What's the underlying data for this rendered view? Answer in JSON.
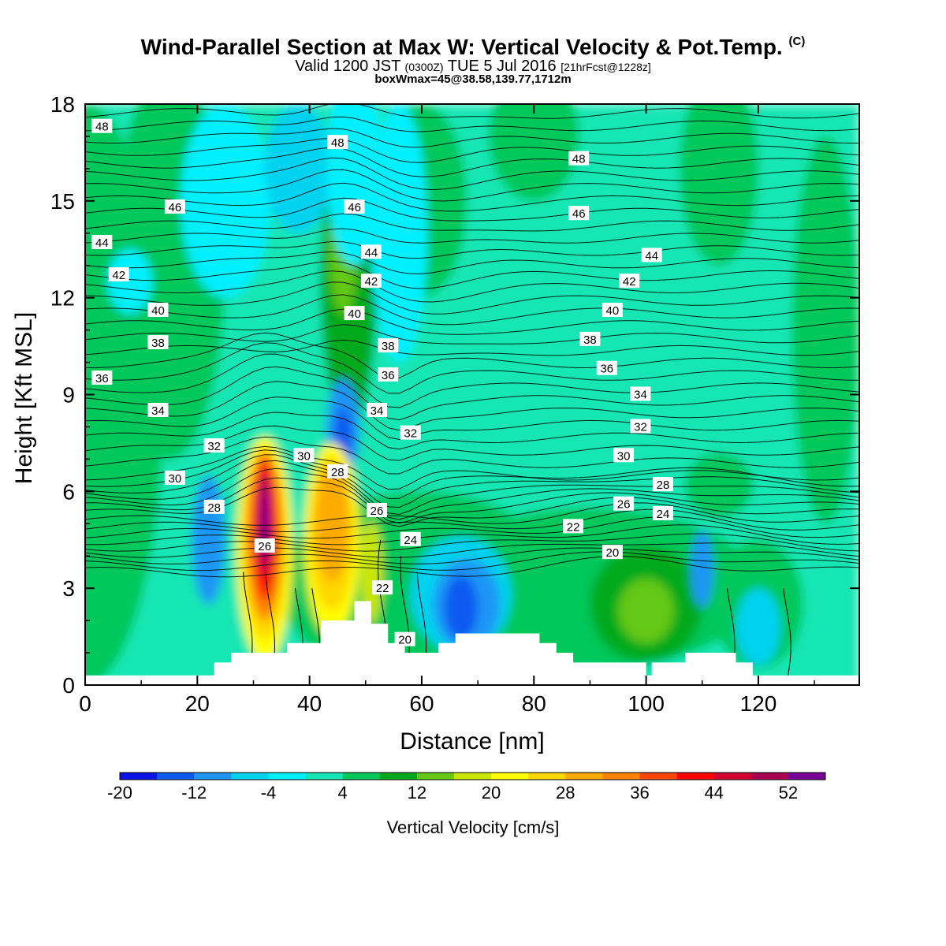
{
  "header": {
    "title_main": "Wind-Parallel Section at Max W: Vertical Velocity & Pot.Temp.",
    "title_mark": "(C)",
    "valid_prefix": "Valid 1200 JST",
    "valid_utc": "(0300Z)",
    "valid_date": "TUE 5 Jul 2016",
    "forecast": "[21hrFcst@1228z]",
    "box_info": "boxWmax=45@38.58,139.77,1712m"
  },
  "chart_data": {
    "type": "heatmap",
    "xlabel": "Distance [nm]",
    "ylabel": "Height [Kft MSL]",
    "xlim": [
      0,
      138
    ],
    "ylim": [
      0,
      18
    ],
    "x_ticks": [
      0,
      20,
      40,
      60,
      80,
      100,
      120
    ],
    "y_ticks": [
      0,
      3,
      6,
      9,
      12,
      15,
      18
    ],
    "colorbar": {
      "label": "Vertical Velocity [cm/s]",
      "tick_labels": [
        "-20",
        "-12",
        "-4",
        "4",
        "12",
        "20",
        "28",
        "36",
        "44",
        "52"
      ],
      "levels": [
        -20,
        -16,
        -12,
        -8,
        -4,
        0,
        4,
        8,
        12,
        16,
        20,
        24,
        28,
        32,
        36,
        40,
        44,
        48,
        52,
        56
      ],
      "colors": [
        "#0a14e6",
        "#0a5af0",
        "#1e96f5",
        "#00d2f0",
        "#00f0ff",
        "#14e6b4",
        "#00c85a",
        "#00aa1e",
        "#64c814",
        "#c8e600",
        "#ffff00",
        "#ffd700",
        "#ffaa00",
        "#ff8200",
        "#ff4600",
        "#ff0000",
        "#d20032",
        "#aa0050",
        "#780096"
      ]
    },
    "terrain_profile": {
      "distance_nm": [
        0,
        20,
        23,
        26,
        36,
        39,
        42,
        48,
        51,
        54,
        57,
        60,
        63,
        66,
        78,
        81,
        84,
        87,
        100,
        101,
        107,
        113,
        116,
        119,
        138
      ],
      "height_kft": [
        0.3,
        0.3,
        0.7,
        1.0,
        1.3,
        1.3,
        2.0,
        2.6,
        1.9,
        1.3,
        1.0,
        1.0,
        1.3,
        1.6,
        1.6,
        1.3,
        1.0,
        0.7,
        0.3,
        0.7,
        1.0,
        1.0,
        0.7,
        0.3,
        0.3
      ]
    },
    "theta_contours_C": [
      20,
      22,
      24,
      26,
      28,
      30,
      32,
      34,
      36,
      38,
      40,
      42,
      44,
      46,
      48
    ],
    "theta_labels": [
      {
        "v": "48",
        "x": 3,
        "h": 17.3
      },
      {
        "v": "48",
        "x": 45,
        "h": 16.8
      },
      {
        "v": "48",
        "x": 88,
        "h": 16.3
      },
      {
        "v": "46",
        "x": 16,
        "h": 14.8
      },
      {
        "v": "46",
        "x": 48,
        "h": 14.8
      },
      {
        "v": "46",
        "x": 88,
        "h": 14.6
      },
      {
        "v": "44",
        "x": 3,
        "h": 13.7
      },
      {
        "v": "44",
        "x": 51,
        "h": 13.4
      },
      {
        "v": "44",
        "x": 101,
        "h": 13.3
      },
      {
        "v": "42",
        "x": 6,
        "h": 12.7
      },
      {
        "v": "42",
        "x": 51,
        "h": 12.5
      },
      {
        "v": "42",
        "x": 97,
        "h": 12.5
      },
      {
        "v": "40",
        "x": 13,
        "h": 11.6
      },
      {
        "v": "40",
        "x": 48,
        "h": 11.5
      },
      {
        "v": "40",
        "x": 94,
        "h": 11.6
      },
      {
        "v": "38",
        "x": 13,
        "h": 10.6
      },
      {
        "v": "38",
        "x": 54,
        "h": 10.5
      },
      {
        "v": "38",
        "x": 90,
        "h": 10.7
      },
      {
        "v": "36",
        "x": 3,
        "h": 9.5
      },
      {
        "v": "36",
        "x": 54,
        "h": 9.6
      },
      {
        "v": "36",
        "x": 93,
        "h": 9.8
      },
      {
        "v": "34",
        "x": 13,
        "h": 8.5
      },
      {
        "v": "34",
        "x": 52,
        "h": 8.5
      },
      {
        "v": "34",
        "x": 99,
        "h": 9.0
      },
      {
        "v": "32",
        "x": 23,
        "h": 7.4
      },
      {
        "v": "32",
        "x": 58,
        "h": 7.8
      },
      {
        "v": "32",
        "x": 99,
        "h": 8.0
      },
      {
        "v": "30",
        "x": 16,
        "h": 6.4
      },
      {
        "v": "30",
        "x": 39,
        "h": 7.1
      },
      {
        "v": "30",
        "x": 96,
        "h": 7.1
      },
      {
        "v": "28",
        "x": 23,
        "h": 5.5
      },
      {
        "v": "28",
        "x": 45,
        "h": 6.6
      },
      {
        "v": "28",
        "x": 103,
        "h": 6.2
      },
      {
        "v": "26",
        "x": 32,
        "h": 4.3
      },
      {
        "v": "26",
        "x": 52,
        "h": 5.4
      },
      {
        "v": "26",
        "x": 96,
        "h": 5.6
      },
      {
        "v": "24",
        "x": 58,
        "h": 4.5
      },
      {
        "v": "24",
        "x": 103,
        "h": 5.3
      },
      {
        "v": "22",
        "x": 53,
        "h": 3.0
      },
      {
        "v": "22",
        "x": 87,
        "h": 4.9
      },
      {
        "v": "20",
        "x": 57,
        "h": 1.4
      },
      {
        "v": "20",
        "x": 94,
        "h": 4.1
      }
    ]
  }
}
